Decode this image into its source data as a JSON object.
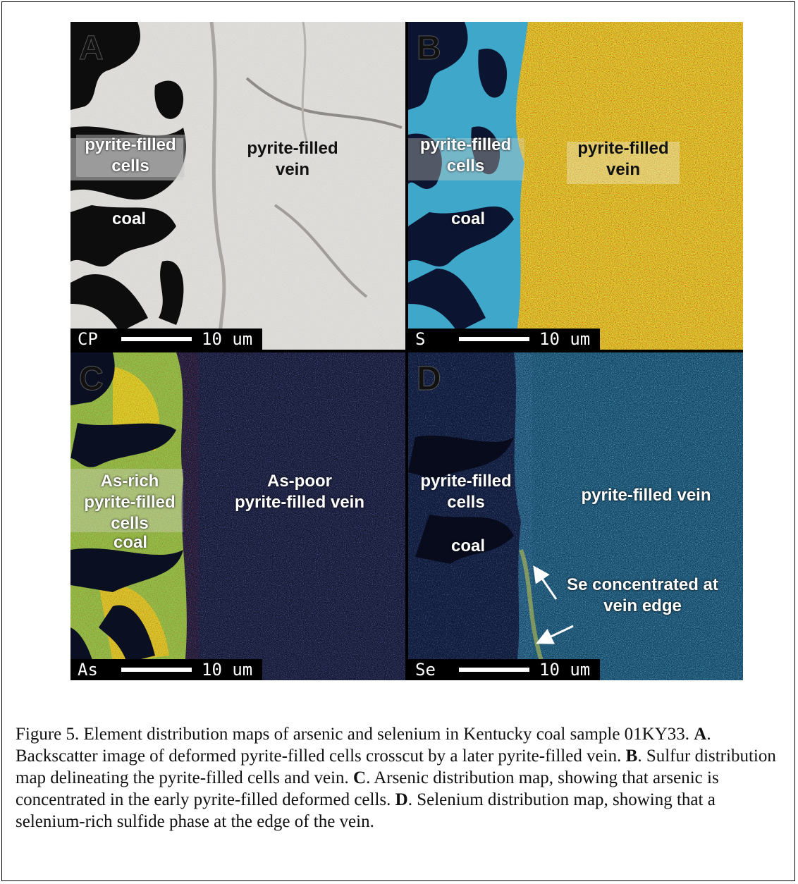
{
  "panels": {
    "a": {
      "letter": "A",
      "labels": {
        "cells": "pyrite-filled\ncells",
        "vein": "pyrite-filled\nvein",
        "coal": "coal"
      },
      "scale": {
        "element": "CP",
        "text": "10 um"
      }
    },
    "b": {
      "letter": "B",
      "labels": {
        "cells": "pyrite-filled\ncells",
        "vein": "pyrite-filled\nvein",
        "coal": "coal"
      },
      "scale": {
        "element": "S",
        "text": "10 um"
      }
    },
    "c": {
      "letter": "C",
      "labels": {
        "cells": "As-rich\npyrite-filled\ncells",
        "vein": "As-poor\npyrite-filled vein",
        "coal": "coal"
      },
      "scale": {
        "element": "As",
        "text": "10 um"
      }
    },
    "d": {
      "letter": "D",
      "labels": {
        "cells": "pyrite-filled\ncells",
        "vein": "pyrite-filled vein",
        "coal": "coal",
        "annotation": "Se concentrated at\nvein edge"
      },
      "scale": {
        "element": "Se",
        "text": "10 um"
      }
    }
  },
  "caption": {
    "lead": "Figure 5.  Element distribution maps of arsenic and selenium in Kentucky coal sample 01KY33.  ",
    "a_key": "A",
    "a_text": ". Backscatter image of deformed pyrite-filled cells crosscut by a later pyrite-filled vein.  ",
    "b_key": "B",
    "b_text": ". Sulfur distribution map delineating the pyrite-filled cells and vein.  ",
    "c_key": "C",
    "c_text": ". Arsenic distribution map, showing that arsenic is concentrated in the early pyrite-filled deformed cells.  ",
    "d_key": "D",
    "d_text": ". Selenium distribution map, showing that a selenium-rich sulfide phase at the edge of the vein."
  }
}
